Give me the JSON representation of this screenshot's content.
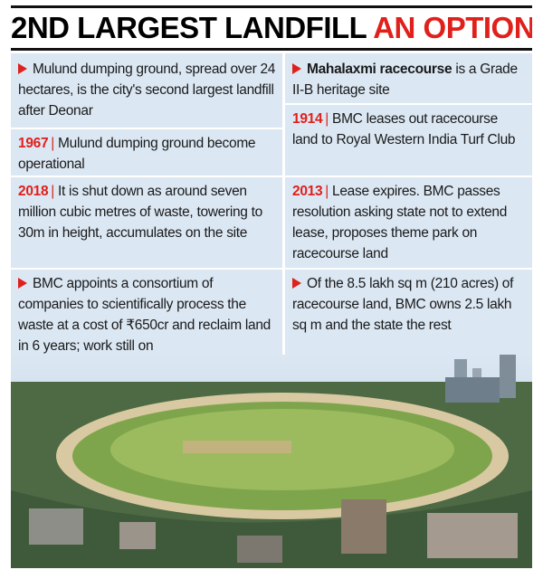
{
  "header": {
    "title_black": "2ND LARGEST LANDFILL",
    "title_red": "AN OPTION?"
  },
  "left_column": [
    {
      "text": "Mulund dumping ground, spread over 24 hectares, is the city's second largest landfill after Deonar"
    },
    {
      "year": "1967",
      "text": "Mulund dumping ground become operational"
    },
    {
      "year": "2018",
      "text": "It is shut down as around seven million cubic metres of waste, towering to 30m in height, accumulates on the site"
    },
    {
      "text": "BMC appoints a consortium of companies to scientifically process the waste at a cost of ₹650cr and reclaim land in 6 years; work still on"
    }
  ],
  "right_column": [
    {
      "bold": "Mahalaxmi racecourse",
      "text": "is a Grade II-B heritage site"
    },
    {
      "year": "1914",
      "text": "BMC leases out racecourse land to Royal Western India Turf Club"
    },
    {
      "year": "2013",
      "text": "Lease expires. BMC passes resolution asking state not to extend lease, proposes theme park on racecourse land"
    },
    {
      "text": "Of the 8.5 lakh sq m (210 acres) of racecourse land, BMC owns 2.5 lakh sq m and the state the rest"
    }
  ]
}
